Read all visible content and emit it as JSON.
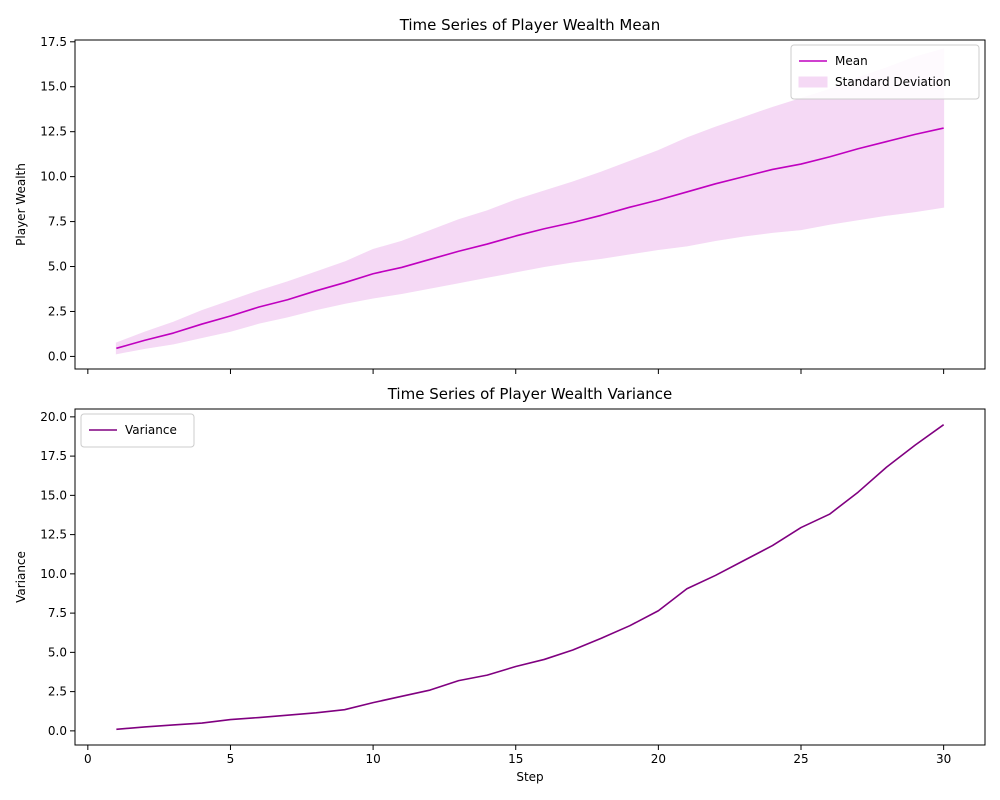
{
  "chart_data": [
    {
      "type": "line",
      "title": "Time Series of Player Wealth Mean",
      "xlabel": "",
      "ylabel": "Player Wealth",
      "xlim": [
        -0.45,
        31.45
      ],
      "ylim": [
        -0.7,
        17.6
      ],
      "x_ticks": [
        0,
        5,
        10,
        15,
        20,
        25,
        30
      ],
      "x_tick_labels_visible": false,
      "y_ticks": [
        0.0,
        2.5,
        5.0,
        7.5,
        10.0,
        12.5,
        15.0,
        17.5
      ],
      "y_tick_labels": [
        "0.0",
        "2.5",
        "5.0",
        "7.5",
        "10.0",
        "12.5",
        "15.0",
        "17.5"
      ],
      "grid": false,
      "legend_position": "top-right",
      "x": [
        1,
        2,
        3,
        4,
        5,
        6,
        7,
        8,
        9,
        10,
        11,
        12,
        13,
        14,
        15,
        16,
        17,
        18,
        19,
        20,
        21,
        22,
        23,
        24,
        25,
        26,
        27,
        28,
        29,
        30
      ],
      "series": [
        {
          "name": "Mean",
          "color": "#bf00bf",
          "values": [
            0.45,
            0.9,
            1.3,
            1.8,
            2.25,
            2.75,
            3.15,
            3.65,
            4.1,
            4.6,
            4.95,
            5.4,
            5.85,
            6.25,
            6.7,
            7.1,
            7.45,
            7.85,
            8.3,
            8.7,
            9.15,
            9.6,
            10.0,
            10.4,
            10.7,
            11.1,
            11.55,
            11.95,
            12.35,
            12.7
          ]
        },
        {
          "name": "Standard Deviation",
          "kind": "band",
          "color": "#f5d9f5",
          "lower": [
            0.15,
            0.45,
            0.7,
            1.05,
            1.4,
            1.85,
            2.2,
            2.6,
            2.95,
            3.25,
            3.5,
            3.8,
            4.1,
            4.4,
            4.7,
            5.0,
            5.25,
            5.45,
            5.7,
            5.95,
            6.15,
            6.45,
            6.7,
            6.9,
            7.05,
            7.35,
            7.6,
            7.85,
            8.05,
            8.3
          ],
          "upper": [
            0.75,
            1.35,
            1.9,
            2.55,
            3.1,
            3.65,
            4.15,
            4.7,
            5.25,
            5.95,
            6.4,
            7.0,
            7.6,
            8.1,
            8.7,
            9.2,
            9.7,
            10.25,
            10.85,
            11.45,
            12.15,
            12.75,
            13.3,
            13.85,
            14.35,
            14.85,
            15.5,
            16.05,
            16.65,
            17.1
          ]
        }
      ]
    },
    {
      "type": "line",
      "title": "Time Series of Player Wealth Variance",
      "xlabel": "Step",
      "ylabel": "Variance",
      "xlim": [
        -0.45,
        31.45
      ],
      "ylim": [
        -0.9,
        20.5
      ],
      "x_ticks": [
        0,
        5,
        10,
        15,
        20,
        25,
        30
      ],
      "x_tick_labels": [
        "0",
        "5",
        "10",
        "15",
        "20",
        "25",
        "30"
      ],
      "y_ticks": [
        0.0,
        2.5,
        5.0,
        7.5,
        10.0,
        12.5,
        15.0,
        17.5,
        20.0
      ],
      "y_tick_labels": [
        "0.0",
        "2.5",
        "5.0",
        "7.5",
        "10.0",
        "12.5",
        "15.0",
        "17.5",
        "20.0"
      ],
      "grid": false,
      "legend_position": "top-left",
      "x": [
        1,
        2,
        3,
        4,
        5,
        6,
        7,
        8,
        9,
        10,
        11,
        12,
        13,
        14,
        15,
        16,
        17,
        18,
        19,
        20,
        21,
        22,
        23,
        24,
        25,
        26,
        27,
        28,
        29,
        30
      ],
      "series": [
        {
          "name": "Variance",
          "color": "#800080",
          "values": [
            0.1,
            0.25,
            0.38,
            0.5,
            0.72,
            0.85,
            1.0,
            1.15,
            1.35,
            1.8,
            2.2,
            2.6,
            3.2,
            3.55,
            4.1,
            4.55,
            5.15,
            5.9,
            6.7,
            7.65,
            9.05,
            9.9,
            10.85,
            11.8,
            12.95,
            13.8,
            15.2,
            16.8,
            18.2,
            19.5
          ]
        }
      ]
    }
  ]
}
